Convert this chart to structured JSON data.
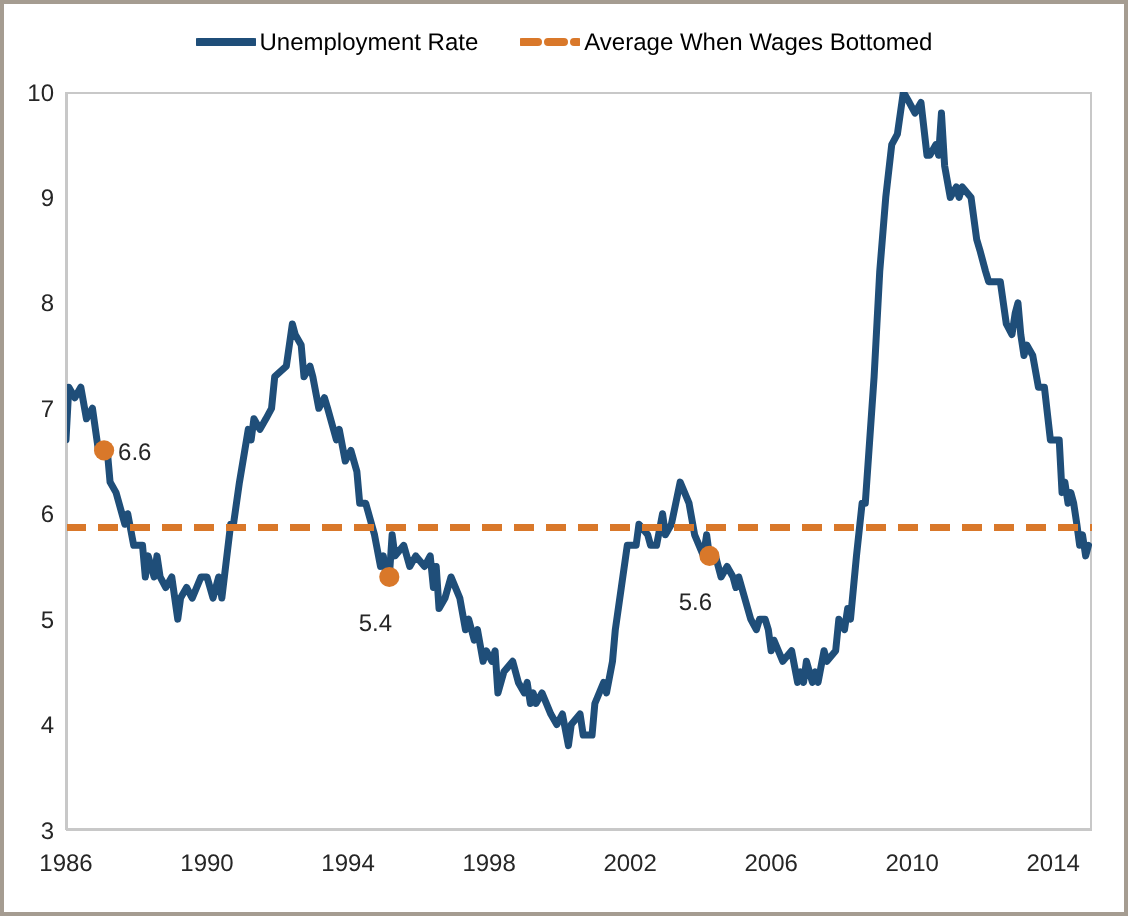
{
  "chart_data": {
    "type": "line",
    "series": [
      {
        "name": "Unemployment Rate",
        "color": "#1f4e79",
        "x": [
          1986.0,
          1986.08,
          1986.25,
          1986.42,
          1986.58,
          1986.75,
          1986.92,
          1987.17,
          1987.25,
          1987.42,
          1987.67,
          1987.75,
          1987.92,
          1988.17,
          1988.25,
          1988.33,
          1988.5,
          1988.58,
          1988.67,
          1988.83,
          1989.0,
          1989.17,
          1989.25,
          1989.42,
          1989.58,
          1989.83,
          1990.0,
          1990.17,
          1990.33,
          1990.42,
          1990.67,
          1990.75,
          1990.92,
          1991.17,
          1991.25,
          1991.33,
          1991.5,
          1991.67,
          1991.83,
          1991.92,
          1992.25,
          1992.42,
          1992.5,
          1992.67,
          1992.75,
          1992.92,
          1993.0,
          1993.17,
          1993.33,
          1993.42,
          1993.67,
          1993.75,
          1993.92,
          1994.08,
          1994.25,
          1994.33,
          1994.5,
          1994.75,
          1994.92,
          1995.0,
          1995.08,
          1995.17,
          1995.25,
          1995.33,
          1995.58,
          1995.75,
          1995.92,
          1996.17,
          1996.33,
          1996.42,
          1996.5,
          1996.58,
          1996.75,
          1996.92,
          1997.17,
          1997.33,
          1997.42,
          1997.58,
          1997.67,
          1997.83,
          1997.92,
          1998.08,
          1998.17,
          1998.25,
          1998.42,
          1998.67,
          1998.83,
          1999.0,
          1999.08,
          1999.17,
          1999.25,
          1999.33,
          1999.5,
          1999.75,
          1999.92,
          2000.08,
          2000.25,
          2000.33,
          2000.58,
          2000.67,
          2000.92,
          2001.0,
          2001.25,
          2001.33,
          2001.5,
          2001.58,
          2001.75,
          2001.92,
          2002.17,
          2002.25,
          2002.5,
          2002.58,
          2002.75,
          2002.92,
          2003.0,
          2003.17,
          2003.42,
          2003.67,
          2003.83,
          2004.08,
          2004.17,
          2004.25,
          2004.42,
          2004.58,
          2004.75,
          2004.92,
          2005.0,
          2005.08,
          2005.42,
          2005.58,
          2005.67,
          2005.83,
          2005.92,
          2006.0,
          2006.08,
          2006.33,
          2006.58,
          2006.75,
          2006.83,
          2006.92,
          2007.0,
          2007.17,
          2007.25,
          2007.33,
          2007.5,
          2007.58,
          2007.83,
          2007.92,
          2008.08,
          2008.17,
          2008.25,
          2008.42,
          2008.58,
          2008.67,
          2008.92,
          2009.08,
          2009.25,
          2009.42,
          2009.58,
          2009.75,
          2009.92,
          2010.08,
          2010.25,
          2010.42,
          2010.5,
          2010.67,
          2010.75,
          2010.83,
          2010.92,
          2011.08,
          2011.25,
          2011.33,
          2011.42,
          2011.67,
          2011.83,
          2011.92,
          2012.08,
          2012.17,
          2012.5,
          2012.67,
          2012.83,
          2012.92,
          2013.0,
          2013.08,
          2013.17,
          2013.25,
          2013.42,
          2013.58,
          2013.75,
          2013.92,
          2014.08,
          2014.17,
          2014.25,
          2014.33,
          2014.42,
          2014.5,
          2014.58,
          2014.67,
          2014.75,
          2014.83,
          2014.92,
          2015.0
        ],
        "values": [
          6.7,
          7.2,
          7.1,
          7.2,
          6.9,
          7.0,
          6.6,
          6.6,
          6.3,
          6.2,
          5.9,
          6.0,
          5.7,
          5.7,
          5.4,
          5.6,
          5.4,
          5.6,
          5.4,
          5.3,
          5.4,
          5.0,
          5.2,
          5.3,
          5.2,
          5.4,
          5.4,
          5.2,
          5.4,
          5.2,
          5.9,
          5.9,
          6.3,
          6.8,
          6.7,
          6.9,
          6.8,
          6.9,
          7.0,
          7.3,
          7.4,
          7.8,
          7.7,
          7.6,
          7.3,
          7.4,
          7.3,
          7.0,
          7.1,
          7.0,
          6.7,
          6.8,
          6.5,
          6.6,
          6.4,
          6.1,
          6.1,
          5.8,
          5.5,
          5.6,
          5.4,
          5.4,
          5.8,
          5.6,
          5.7,
          5.5,
          5.6,
          5.5,
          5.6,
          5.3,
          5.5,
          5.1,
          5.2,
          5.4,
          5.2,
          4.9,
          5.0,
          4.8,
          4.9,
          4.6,
          4.7,
          4.6,
          4.7,
          4.3,
          4.5,
          4.6,
          4.4,
          4.3,
          4.4,
          4.2,
          4.3,
          4.2,
          4.3,
          4.1,
          4.0,
          4.1,
          3.8,
          4.0,
          4.1,
          3.9,
          3.9,
          4.2,
          4.4,
          4.3,
          4.6,
          4.9,
          5.3,
          5.7,
          5.7,
          5.9,
          5.8,
          5.7,
          5.7,
          6.0,
          5.8,
          5.9,
          6.3,
          6.1,
          5.8,
          5.6,
          5.8,
          5.6,
          5.6,
          5.4,
          5.5,
          5.4,
          5.3,
          5.4,
          5.0,
          4.9,
          5.0,
          5.0,
          4.9,
          4.7,
          4.8,
          4.6,
          4.7,
          4.4,
          4.5,
          4.4,
          4.6,
          4.4,
          4.5,
          4.4,
          4.7,
          4.6,
          4.7,
          5.0,
          4.9,
          5.1,
          5.0,
          5.6,
          6.1,
          6.1,
          7.3,
          8.3,
          9.0,
          9.5,
          9.6,
          10.0,
          9.9,
          9.8,
          9.9,
          9.4,
          9.4,
          9.5,
          9.4,
          9.8,
          9.3,
          9.0,
          9.1,
          9.0,
          9.1,
          9.0,
          8.6,
          8.5,
          8.3,
          8.2,
          8.2,
          7.8,
          7.7,
          7.9,
          8.0,
          7.7,
          7.5,
          7.6,
          7.5,
          7.2,
          7.2,
          6.7,
          6.7,
          6.7,
          6.2,
          6.3,
          6.1,
          6.2,
          6.1,
          5.9,
          5.7,
          5.8,
          5.6,
          5.7
        ]
      },
      {
        "type": "scatter",
        "color": "#d9782a",
        "marker": "circle",
        "x": [
          1987.08,
          1995.17,
          2004.25
        ],
        "values": [
          6.6,
          5.4,
          5.6
        ],
        "value_labels": [
          "6.6",
          "5.4",
          "5.6"
        ]
      }
    ],
    "xlim": [
      1986,
      2015.1
    ],
    "xticks": [
      1986,
      1990,
      1994,
      1998,
      2002,
      2006,
      2010,
      2014
    ],
    "ylim": [
      3,
      10
    ],
    "yticks": [
      3,
      4,
      5,
      6,
      7,
      8,
      9,
      10
    ],
    "ref_lines": [
      {
        "axis": "y",
        "value": 5.87,
        "label": "Average When Wages Bottomed",
        "color": "#d9782a",
        "line_style": "dashed"
      }
    ],
    "legend": "top"
  }
}
